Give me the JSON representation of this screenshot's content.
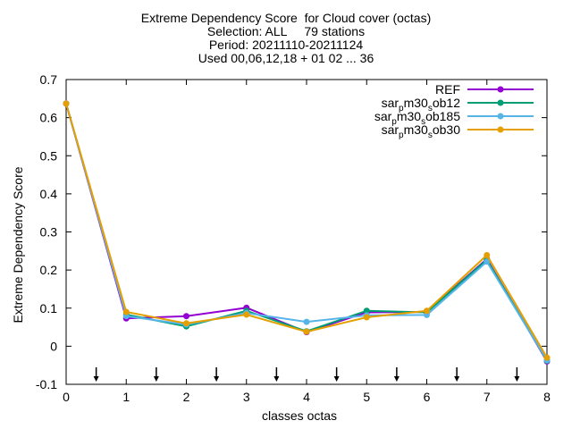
{
  "chart_data": {
    "type": "line",
    "title_lines": [
      "Extreme Dependency Score  for Cloud cover (octas)",
      "Selection: ALL     79 stations",
      "Period: 20211110-20211124",
      "Used 00,06,12,18 + 01 02 ... 36"
    ],
    "xlabel": "classes octas",
    "ylabel": "Extreme Dependency Score",
    "xlim": [
      0,
      8
    ],
    "ylim": [
      -0.1,
      0.7
    ],
    "x_ticks": [
      "0",
      "1",
      "2",
      "3",
      "4",
      "5",
      "6",
      "7",
      "8"
    ],
    "y_ticks": [
      "-0.1",
      "0",
      "0.1",
      "0.2",
      "0.3",
      "0.4",
      "0.5",
      "0.6",
      "0.7"
    ],
    "legend_position": "top-right",
    "x": [
      0,
      1,
      2,
      3,
      4,
      5,
      6,
      7,
      8
    ],
    "series": [
      {
        "name": "REF",
        "label_parts": [
          "REF"
        ],
        "color": "#9400d3",
        "values": [
          0.637,
          0.073,
          0.079,
          0.101,
          0.037,
          0.089,
          0.09,
          0.229,
          -0.04
        ]
      },
      {
        "name": "sarpm30sob12",
        "label_parts": [
          "sar",
          "p",
          "m30",
          "s",
          "ob12"
        ],
        "color": "#009e73",
        "values": [
          0.637,
          0.083,
          0.052,
          0.093,
          0.039,
          0.093,
          0.089,
          0.227,
          -0.038
        ]
      },
      {
        "name": "sarpm30sob185",
        "label_parts": [
          "sar",
          "p",
          "m30",
          "s",
          "ob185"
        ],
        "color": "#56b4e9",
        "values": [
          0.637,
          0.079,
          0.057,
          0.087,
          0.064,
          0.081,
          0.082,
          0.222,
          -0.037
        ]
      },
      {
        "name": "sarpm30sob30",
        "label_parts": [
          "sar",
          "p",
          "m30",
          "s",
          "ob30"
        ],
        "color": "#e69f00",
        "values": [
          0.637,
          0.09,
          0.06,
          0.083,
          0.038,
          0.076,
          0.093,
          0.239,
          -0.03
        ]
      }
    ],
    "arrow_x": [
      0.5,
      1.5,
      2.5,
      3.5,
      4.5,
      5.5,
      6.5,
      7.5
    ]
  }
}
